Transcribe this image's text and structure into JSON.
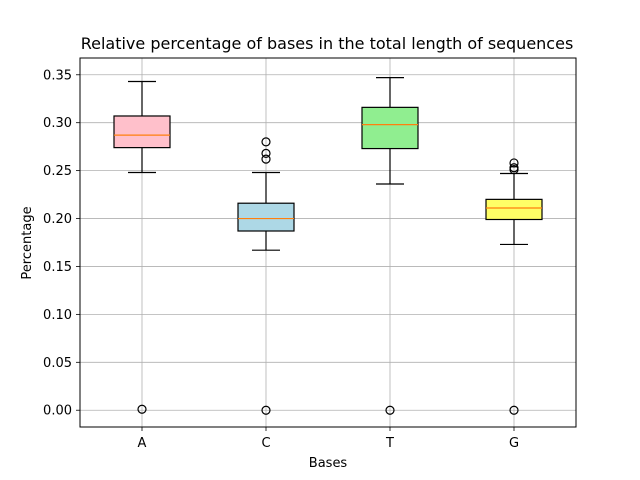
{
  "chart_data": {
    "type": "box",
    "title": "Relative percentage of bases in the total length of sequences",
    "xlabel": "Bases",
    "ylabel": "Percentage",
    "categories": [
      "A",
      "C",
      "T",
      "G"
    ],
    "ylim": [
      -0.0175,
      0.3675
    ],
    "yticks": [
      0.0,
      0.05,
      0.1,
      0.15,
      0.2,
      0.25,
      0.3,
      0.35
    ],
    "ytick_labels": [
      "0.00",
      "0.05",
      "0.10",
      "0.15",
      "0.20",
      "0.25",
      "0.30",
      "0.35"
    ],
    "grid": true,
    "boxes": [
      {
        "category": "A",
        "whisker_low": 0.248,
        "q1": 0.274,
        "median": 0.287,
        "q3": 0.307,
        "whisker_high": 0.343,
        "outliers": [
          0.001
        ],
        "fill": "#ffc0cb"
      },
      {
        "category": "C",
        "whisker_low": 0.167,
        "q1": 0.187,
        "median": 0.2,
        "q3": 0.216,
        "whisker_high": 0.248,
        "outliers": [
          0.262,
          0.268,
          0.28,
          0.0
        ],
        "fill": "#add8e6"
      },
      {
        "category": "T",
        "whisker_low": 0.236,
        "q1": 0.273,
        "median": 0.298,
        "q3": 0.316,
        "whisker_high": 0.347,
        "outliers": [
          0.0
        ],
        "fill": "#90ee90"
      },
      {
        "category": "G",
        "whisker_low": 0.173,
        "q1": 0.199,
        "median": 0.211,
        "q3": 0.22,
        "whisker_high": 0.247,
        "outliers": [
          0.251,
          0.253,
          0.258,
          0.0
        ],
        "fill": "#ffff66"
      }
    ],
    "colors": {
      "median": "#ff7f0e",
      "grid": "#b0b0b0",
      "edge": "#000000"
    }
  }
}
